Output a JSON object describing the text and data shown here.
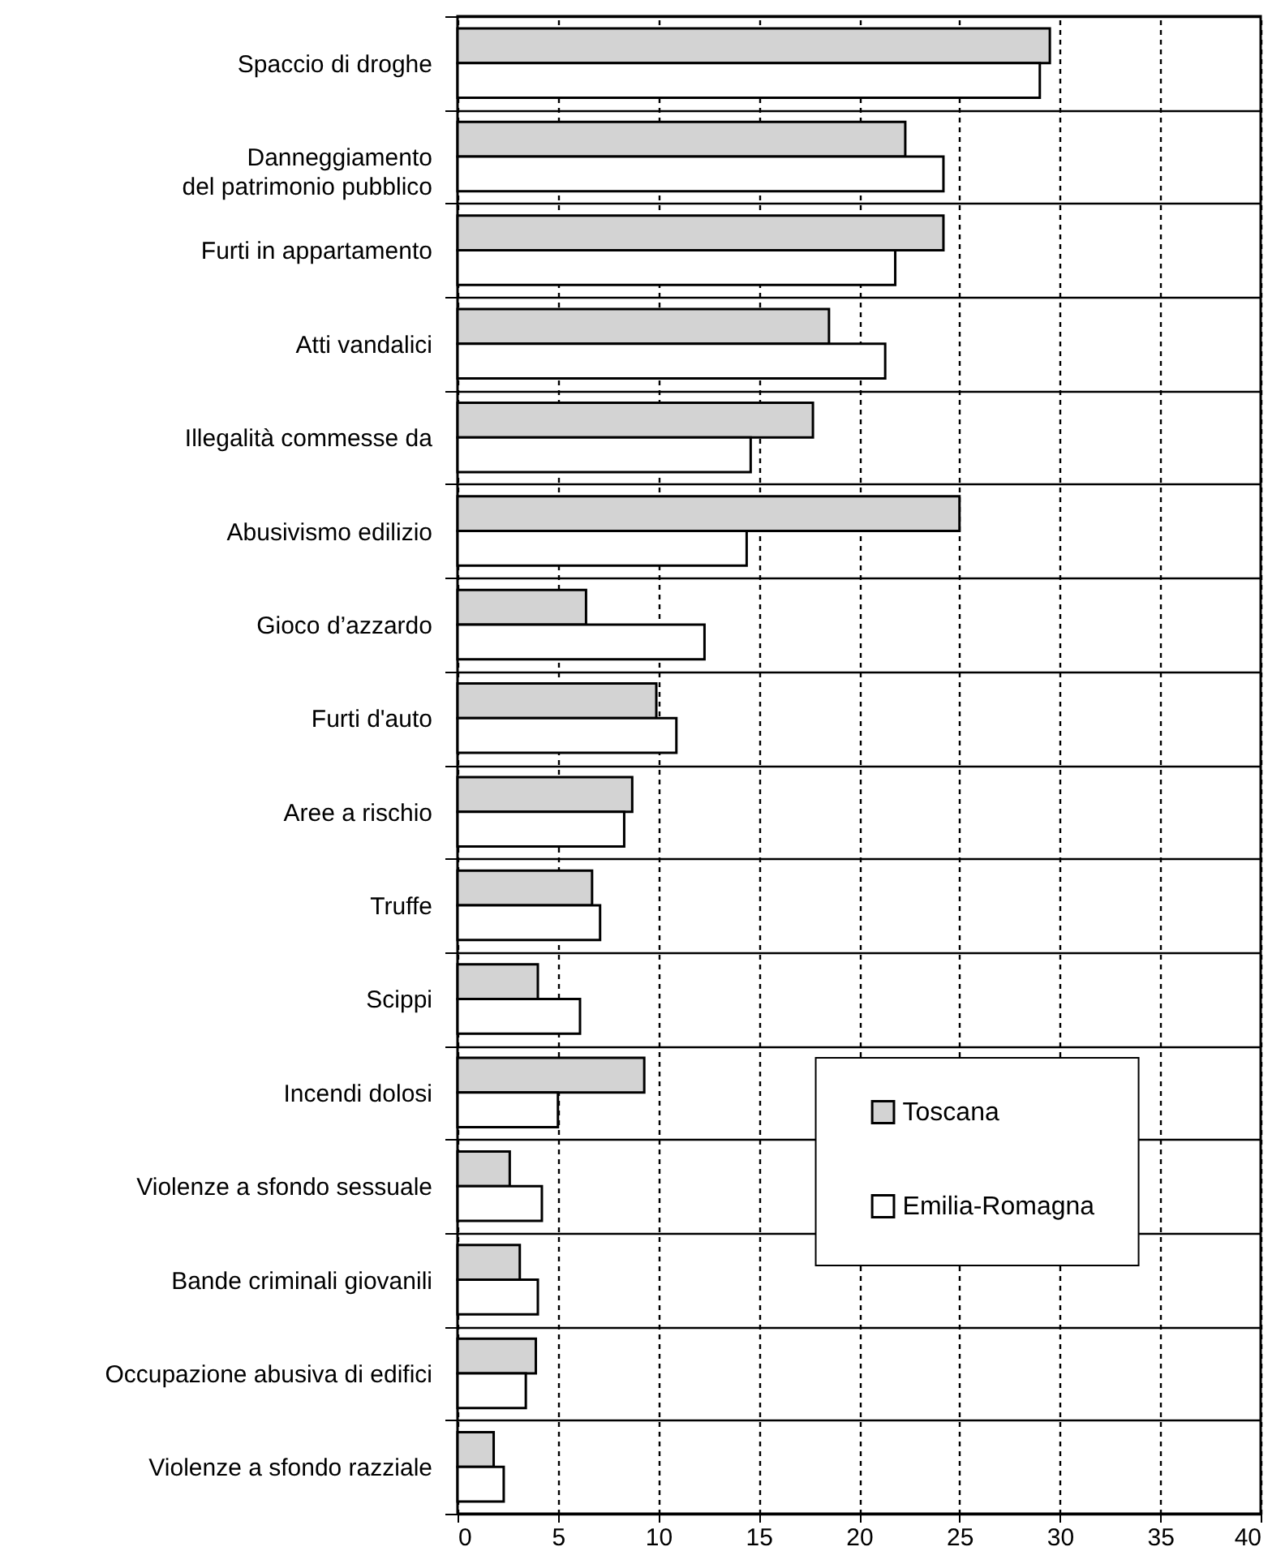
{
  "chart_data": {
    "type": "bar",
    "orientation": "horizontal",
    "categories": [
      "Spaccio di droghe",
      "Danneggiamento\ndel patrimonio pubblico",
      "Furti in appartamento",
      "Atti vandalici",
      "Illegalità commesse da",
      "Abusivismo edilizio",
      "Gioco d’azzardo",
      "Furti d'auto",
      "Aree a rischio",
      "Truffe",
      "Scippi",
      "Incendi dolosi",
      "Violenze a sfondo sessuale",
      "Bande criminali giovanili",
      "Occupazione abusiva di edifici",
      "Violenze a sfondo razziale"
    ],
    "series": [
      {
        "name": "Toscana",
        "color": "#d3d3d3",
        "values": [
          29.5,
          22.3,
          24.2,
          18.5,
          17.7,
          25.0,
          6.4,
          9.9,
          8.7,
          6.7,
          4.0,
          9.3,
          2.6,
          3.1,
          3.9,
          1.8
        ]
      },
      {
        "name": "Emilia-Romagna",
        "color": "#ffffff",
        "values": [
          29.0,
          24.2,
          21.8,
          21.3,
          14.6,
          14.4,
          12.3,
          10.9,
          8.3,
          7.1,
          6.1,
          5.0,
          4.2,
          4.0,
          3.4,
          2.3
        ]
      }
    ],
    "xlim": [
      0,
      40
    ],
    "xticks": [
      0,
      5,
      10,
      15,
      20,
      25,
      30,
      35,
      40
    ],
    "grid": true,
    "legend": "bottom right"
  }
}
